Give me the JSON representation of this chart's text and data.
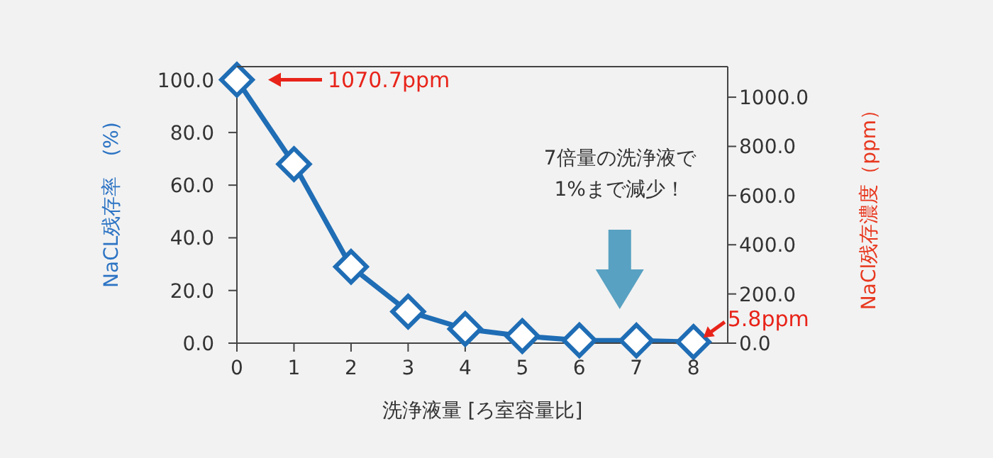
{
  "chart_data": {
    "type": "line",
    "xlabel": "洗浄液量 [ろ室容量比]",
    "ylabel": "NaCL残存率　(%)",
    "y2label": "NaCl残存濃度（ppm）",
    "x": [
      0,
      1,
      2,
      3,
      4,
      5,
      6,
      7,
      8
    ],
    "series": [
      {
        "color": "#1f6db5",
        "values": [
          100,
          68,
          29,
          12,
          5.4,
          2.7,
          1.1,
          1,
          0.5
        ]
      }
    ],
    "xlim": [
      0,
      8.6
    ],
    "xticks": [
      0,
      1,
      2,
      3,
      4,
      5,
      6,
      7,
      8
    ],
    "ylim": [
      0,
      105
    ],
    "yticks": [
      {
        "value": 0,
        "label": "0.0"
      },
      {
        "value": 20,
        "label": "20.0"
      },
      {
        "value": 40,
        "label": "40.0"
      },
      {
        "value": 60,
        "label": "60.0"
      },
      {
        "value": 80,
        "label": "80.0"
      },
      {
        "value": 100,
        "label": "100.0"
      }
    ],
    "y2lim": [
      0,
      1124.2
    ],
    "y2ticks": [
      {
        "value": 0,
        "label": "0.0"
      },
      {
        "value": 200,
        "label": "200.0"
      },
      {
        "value": 400,
        "label": "400.0"
      },
      {
        "value": 600,
        "label": "600.0"
      },
      {
        "value": 800,
        "label": "800.0"
      },
      {
        "value": 1000,
        "label": "1000.0"
      }
    ],
    "marker": "diamond",
    "line_style": "solid",
    "annotations": [
      "1070.7ppm",
      "5.8ppm",
      "7倍量の洗浄液で\n1%まで減少！"
    ]
  }
}
